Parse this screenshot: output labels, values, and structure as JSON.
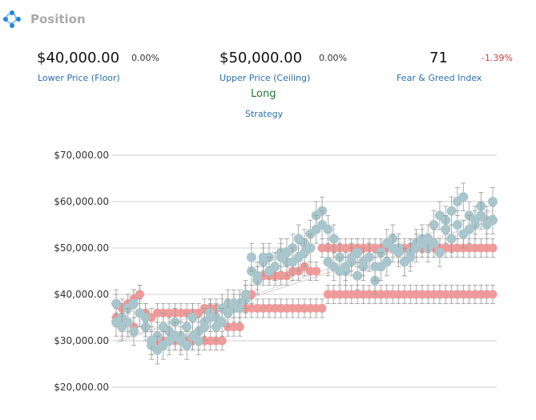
{
  "header": {
    "title": "Position",
    "icon": "position-icon"
  },
  "stats": {
    "lower": {
      "value": "$40,000.00",
      "change": "0.00%",
      "label": "Lower Price (Floor)"
    },
    "upper": {
      "value": "$50,000.00",
      "change": "0.00%",
      "label": "Upper Price (Ceiling)"
    },
    "fear_greed": {
      "value": "71",
      "change": "-1.39%",
      "label": "Fear & Greed Index"
    },
    "strategy": {
      "value": "Long",
      "label": "Strategy"
    }
  },
  "colors": {
    "price": "#a8c6cc",
    "bands": "#ef9a9a",
    "positive": "#1f7a34",
    "negative": "#d23b3b",
    "link": "#2a6fb5"
  },
  "chart_data": {
    "type": "scatter",
    "ylim": [
      20000,
      70000
    ],
    "yticks": [
      "$20,000.00",
      "$30,000.00",
      "$40,000.00",
      "$50,000.00",
      "$60,000.00",
      "$70,000.00"
    ],
    "series": [
      {
        "values": [
          38000,
          35000,
          37000,
          38000,
          36000,
          33000,
          29000,
          31000,
          33000,
          32000,
          34000,
          31000,
          33000,
          35000,
          32000,
          34000,
          36000,
          35000,
          37000,
          38000,
          37000,
          38000,
          39000,
          45000,
          43000,
          47000,
          48000,
          46000,
          49000,
          47000,
          50000,
          52000,
          51000,
          53000,
          57000,
          58000,
          54000,
          52000,
          48000,
          45000,
          47000,
          44000,
          46000,
          48000,
          43000,
          49000,
          47000,
          52000,
          50000,
          47000,
          49000,
          51000,
          52000,
          50000,
          55000,
          57000,
          56000,
          58000,
          60000,
          61000,
          57000,
          55000,
          59000,
          56000,
          60000
        ]
      },
      {
        "values": [
          34000,
          33000,
          34000,
          32000,
          36000,
          35000,
          30000,
          28000,
          29000,
          30000,
          31000,
          30000,
          29000,
          31000,
          30000,
          33000,
          35000,
          33000,
          34000,
          36000,
          38000,
          37000,
          40000,
          48000,
          44000,
          48000,
          45000,
          46000,
          48000,
          49000,
          47000,
          48000,
          49000,
          50000,
          54000,
          55000,
          47000,
          46000,
          45000,
          46000,
          48000,
          49000,
          47000,
          48000,
          46000,
          46000,
          51000,
          50000,
          49000,
          47000,
          48000,
          50000,
          51000,
          52000,
          51000,
          49000,
          54000,
          52000,
          55000,
          53000,
          54000,
          56000,
          57000,
          55000,
          56000
        ]
      },
      {
        "values": [
          38000,
          37000,
          38000,
          39000,
          40000,
          36000,
          35000,
          36000,
          36000,
          36000,
          36000,
          36000,
          36000,
          36000,
          36000,
          37000,
          37000,
          37000,
          37000,
          37000,
          37000,
          37000,
          37000,
          37000,
          37000,
          37000,
          37000,
          37000,
          37000,
          37000,
          37000,
          37000,
          37000,
          37000,
          37000,
          37000,
          40000,
          40000,
          40000,
          40000,
          40000,
          40000,
          40000,
          40000,
          40000,
          40000,
          40000,
          40000,
          40000,
          40000,
          40000,
          40000,
          40000,
          40000,
          40000,
          40000,
          40000,
          40000,
          40000,
          40000,
          40000,
          40000,
          40000,
          40000,
          40000
        ]
      },
      {
        "values": [
          35000,
          33000,
          34000,
          33000,
          40000,
          33000,
          29000,
          30000,
          30000,
          30000,
          30000,
          30000,
          30000,
          30000,
          30000,
          30000,
          30000,
          30000,
          30000,
          33000,
          33000,
          33000,
          40000,
          40000,
          44000,
          44000,
          44000,
          44000,
          44000,
          44000,
          45000,
          45000,
          46000,
          45000,
          45000,
          50000,
          50000,
          50000,
          50000,
          50000,
          50000,
          50000,
          50000,
          50000,
          50000,
          50000,
          50000,
          50000,
          50000,
          50000,
          50000,
          50000,
          50000,
          50000,
          50000,
          50000,
          50000,
          50000,
          50000,
          50000,
          50000,
          50000,
          50000,
          50000,
          50000
        ]
      }
    ]
  }
}
